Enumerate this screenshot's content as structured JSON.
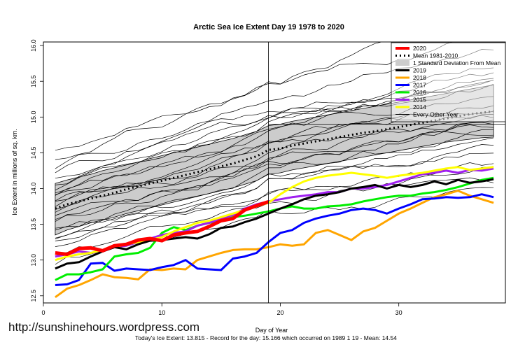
{
  "watermark": "http://sunshinehours.wordpress.com",
  "footer_text": "Today's Ice Extent: 13.815  - Record for the day: 15.166 which occurred on 1989 1 19  - Mean: 14.54",
  "chart_data": {
    "type": "line",
    "title": "Arctic Sea Ice Extent Day 19 1978 to 2020",
    "xlabel": "Day of Year",
    "ylabel": "Ice Extent in millions of sq. km.",
    "xlim": [
      0,
      39
    ],
    "ylim": [
      12.4,
      16.05
    ],
    "x_ticks": [
      0,
      10,
      20,
      30
    ],
    "y_ticks": [
      12.5,
      13.0,
      13.5,
      14.0,
      14.5,
      15.0,
      15.5,
      16.0
    ],
    "reference_line_x": 19,
    "reference_line_y": 14.9,
    "legend_position": "top-right",
    "series": [
      {
        "name": "2020",
        "color": "#ff0000",
        "width": 5,
        "dash": "",
        "x": [
          1,
          2,
          3,
          4,
          5,
          6,
          7,
          8,
          9,
          10,
          11,
          12,
          13,
          14,
          15,
          16,
          17,
          18,
          19
        ],
        "values": [
          13.1,
          13.08,
          13.16,
          13.17,
          13.13,
          13.2,
          13.22,
          13.28,
          13.3,
          13.27,
          13.35,
          13.38,
          13.4,
          13.47,
          13.55,
          13.58,
          13.7,
          13.76,
          13.815
        ]
      },
      {
        "name": "Mean 1981-2010",
        "color": "#000000",
        "width": 3,
        "dash": "2,4",
        "x": [
          1,
          2,
          3,
          4,
          5,
          6,
          7,
          8,
          9,
          10,
          11,
          12,
          13,
          14,
          15,
          16,
          17,
          18,
          19,
          20,
          21,
          22,
          23,
          24,
          25,
          26,
          27,
          28,
          29,
          30,
          31,
          32,
          33,
          34,
          35,
          36,
          37,
          38
        ],
        "values": [
          13.72,
          13.78,
          13.82,
          13.86,
          13.9,
          13.94,
          13.99,
          14.03,
          14.07,
          14.11,
          14.15,
          14.19,
          14.23,
          14.27,
          14.31,
          14.35,
          14.4,
          14.45,
          14.54,
          14.56,
          14.6,
          14.63,
          14.66,
          14.69,
          14.72,
          14.75,
          14.78,
          14.8,
          14.83,
          14.86,
          14.89,
          14.92,
          14.95,
          14.98,
          15.01,
          15.04,
          15.06,
          15.08
        ]
      },
      {
        "name": "1 Standard Deviation From Mean",
        "color": "#cccccc",
        "width": 8,
        "dash": "",
        "band": true,
        "x": [
          1,
          2,
          3,
          4,
          5,
          6,
          7,
          8,
          9,
          10,
          11,
          12,
          13,
          14,
          15,
          16,
          17,
          18,
          19,
          20,
          21,
          22,
          23,
          24,
          25,
          26,
          27,
          28,
          29,
          30,
          31,
          32,
          33,
          34,
          35,
          36,
          37,
          38
        ],
        "upper": [
          14.07,
          14.12,
          14.16,
          14.2,
          14.25,
          14.29,
          14.33,
          14.37,
          14.42,
          14.46,
          14.5,
          14.54,
          14.58,
          14.62,
          14.66,
          14.7,
          14.75,
          14.8,
          14.88,
          14.9,
          14.94,
          14.97,
          15.0,
          15.03,
          15.06,
          15.09,
          15.12,
          15.15,
          15.18,
          15.21,
          15.24,
          15.27,
          15.3,
          15.33,
          15.36,
          15.39,
          15.42,
          15.45
        ],
        "lower": [
          13.35,
          13.42,
          13.47,
          13.52,
          13.56,
          13.6,
          13.65,
          13.69,
          13.73,
          13.77,
          13.81,
          13.85,
          13.89,
          13.93,
          13.97,
          14.01,
          14.06,
          14.11,
          14.2,
          14.22,
          14.26,
          14.29,
          14.32,
          14.35,
          14.38,
          14.41,
          14.44,
          14.47,
          14.5,
          14.53,
          14.56,
          14.59,
          14.62,
          14.65,
          14.67,
          14.69,
          14.71,
          14.72
        ]
      },
      {
        "name": "2019",
        "color": "#000000",
        "width": 3,
        "dash": "",
        "x": [
          1,
          2,
          3,
          4,
          5,
          6,
          7,
          8,
          9,
          10,
          11,
          12,
          13,
          14,
          15,
          16,
          17,
          18,
          19,
          20,
          21,
          22,
          23,
          24,
          25,
          26,
          27,
          28,
          29,
          30,
          31,
          32,
          33,
          34,
          35,
          36,
          37,
          38
        ],
        "values": [
          12.88,
          12.95,
          12.97,
          13.05,
          13.12,
          13.18,
          13.15,
          13.22,
          13.27,
          13.28,
          13.3,
          13.32,
          13.3,
          13.36,
          13.45,
          13.47,
          13.53,
          13.58,
          13.65,
          13.72,
          13.78,
          13.85,
          13.9,
          13.92,
          13.95,
          14.0,
          14.02,
          14.05,
          14.0,
          14.05,
          14.02,
          14.05,
          14.1,
          14.06,
          14.12,
          14.08,
          14.1,
          14.13
        ]
      },
      {
        "name": "2018",
        "color": "#ffa500",
        "width": 3,
        "dash": "",
        "x": [
          1,
          2,
          3,
          4,
          5,
          6,
          7,
          8,
          9,
          10,
          11,
          12,
          13,
          14,
          15,
          16,
          17,
          18,
          19,
          20,
          21,
          22,
          23,
          24,
          25,
          26,
          27,
          28,
          29,
          30,
          31,
          32,
          33,
          34,
          35,
          36,
          37,
          38
        ],
        "values": [
          12.48,
          12.6,
          12.65,
          12.72,
          12.8,
          12.76,
          12.75,
          12.73,
          12.87,
          12.86,
          12.88,
          12.87,
          13.0,
          13.05,
          13.1,
          13.14,
          13.15,
          13.15,
          13.18,
          13.22,
          13.2,
          13.22,
          13.38,
          13.42,
          13.35,
          13.28,
          13.4,
          13.45,
          13.55,
          13.65,
          13.72,
          13.8,
          13.88,
          13.92,
          13.97,
          13.9,
          13.85,
          13.8
        ]
      },
      {
        "name": "2017",
        "color": "#0000ff",
        "width": 3,
        "dash": "",
        "x": [
          1,
          2,
          3,
          4,
          5,
          6,
          7,
          8,
          9,
          10,
          11,
          12,
          13,
          14,
          15,
          16,
          17,
          18,
          19,
          20,
          21,
          22,
          23,
          24,
          25,
          26,
          27,
          28,
          29,
          30,
          31,
          32,
          33,
          34,
          35,
          36,
          37,
          38
        ],
        "values": [
          12.65,
          12.66,
          12.72,
          12.95,
          12.96,
          12.85,
          12.88,
          12.87,
          12.86,
          12.9,
          12.93,
          13.0,
          12.88,
          12.87,
          12.86,
          13.02,
          13.05,
          13.1,
          13.25,
          13.38,
          13.42,
          13.52,
          13.58,
          13.62,
          13.65,
          13.7,
          13.72,
          13.7,
          13.65,
          13.72,
          13.78,
          13.85,
          13.86,
          13.88,
          13.87,
          13.88,
          13.92,
          13.88
        ]
      },
      {
        "name": "2016",
        "color": "#00ee00",
        "width": 3,
        "dash": "",
        "x": [
          1,
          2,
          3,
          4,
          5,
          6,
          7,
          8,
          9,
          10,
          11,
          12,
          13,
          14,
          15,
          16,
          17,
          18,
          19,
          20,
          21,
          22,
          23,
          24,
          25,
          26,
          27,
          28,
          29,
          30,
          31,
          32,
          33,
          34,
          35,
          36,
          37,
          38
        ],
        "values": [
          12.72,
          12.8,
          12.8,
          12.83,
          12.87,
          13.05,
          13.08,
          13.1,
          13.17,
          13.38,
          13.46,
          13.42,
          13.48,
          13.52,
          13.55,
          13.6,
          13.62,
          13.65,
          13.68,
          13.72,
          13.75,
          13.72,
          13.72,
          13.75,
          13.76,
          13.78,
          13.82,
          13.85,
          13.88,
          13.9,
          13.9,
          13.93,
          13.95,
          13.98,
          14.02,
          14.07,
          14.12,
          14.15
        ]
      },
      {
        "name": "2015",
        "color": "#a020f0",
        "width": 3,
        "dash": "",
        "x": [
          1,
          2,
          3,
          4,
          5,
          6,
          7,
          8,
          9,
          10,
          11,
          12,
          13,
          14,
          15,
          16,
          17,
          18,
          19,
          20,
          21,
          22,
          23,
          24,
          25,
          26,
          27,
          28,
          29,
          30,
          31,
          32,
          33,
          34,
          35,
          36,
          37,
          38
        ],
        "values": [
          13.05,
          13.08,
          13.12,
          13.1,
          13.12,
          13.18,
          13.2,
          13.25,
          13.3,
          13.35,
          13.38,
          13.4,
          13.48,
          13.52,
          13.58,
          13.63,
          13.72,
          13.78,
          13.82,
          13.85,
          13.88,
          13.9,
          13.92,
          13.95,
          13.95,
          14.0,
          14.0,
          14.02,
          14.05,
          14.1,
          14.15,
          14.2,
          14.22,
          14.25,
          14.22,
          14.26,
          14.25,
          14.28
        ]
      },
      {
        "name": "2014",
        "color": "#ffff00",
        "width": 3,
        "dash": "",
        "x": [
          1,
          2,
          3,
          4,
          5,
          6,
          7,
          8,
          9,
          10,
          11,
          12,
          13,
          14,
          15,
          16,
          17,
          18,
          19,
          20,
          21,
          22,
          23,
          24,
          25,
          26,
          27,
          28,
          29,
          30,
          31,
          32,
          33,
          34,
          35,
          36,
          37,
          38
        ],
        "values": [
          13.0,
          13.05,
          13.08,
          13.1,
          13.14,
          13.18,
          13.22,
          13.25,
          13.28,
          13.32,
          13.4,
          13.46,
          13.52,
          13.55,
          13.6,
          13.65,
          13.7,
          13.75,
          13.8,
          13.92,
          14.02,
          14.1,
          14.15,
          14.18,
          14.2,
          14.22,
          14.2,
          14.18,
          14.15,
          14.18,
          14.2,
          14.22,
          14.25,
          14.28,
          14.3,
          14.26,
          14.28,
          14.3
        ]
      },
      {
        "name": "Every Other Year",
        "color": "#000000",
        "width": 0.8,
        "dash": "",
        "group": true
      }
    ]
  }
}
